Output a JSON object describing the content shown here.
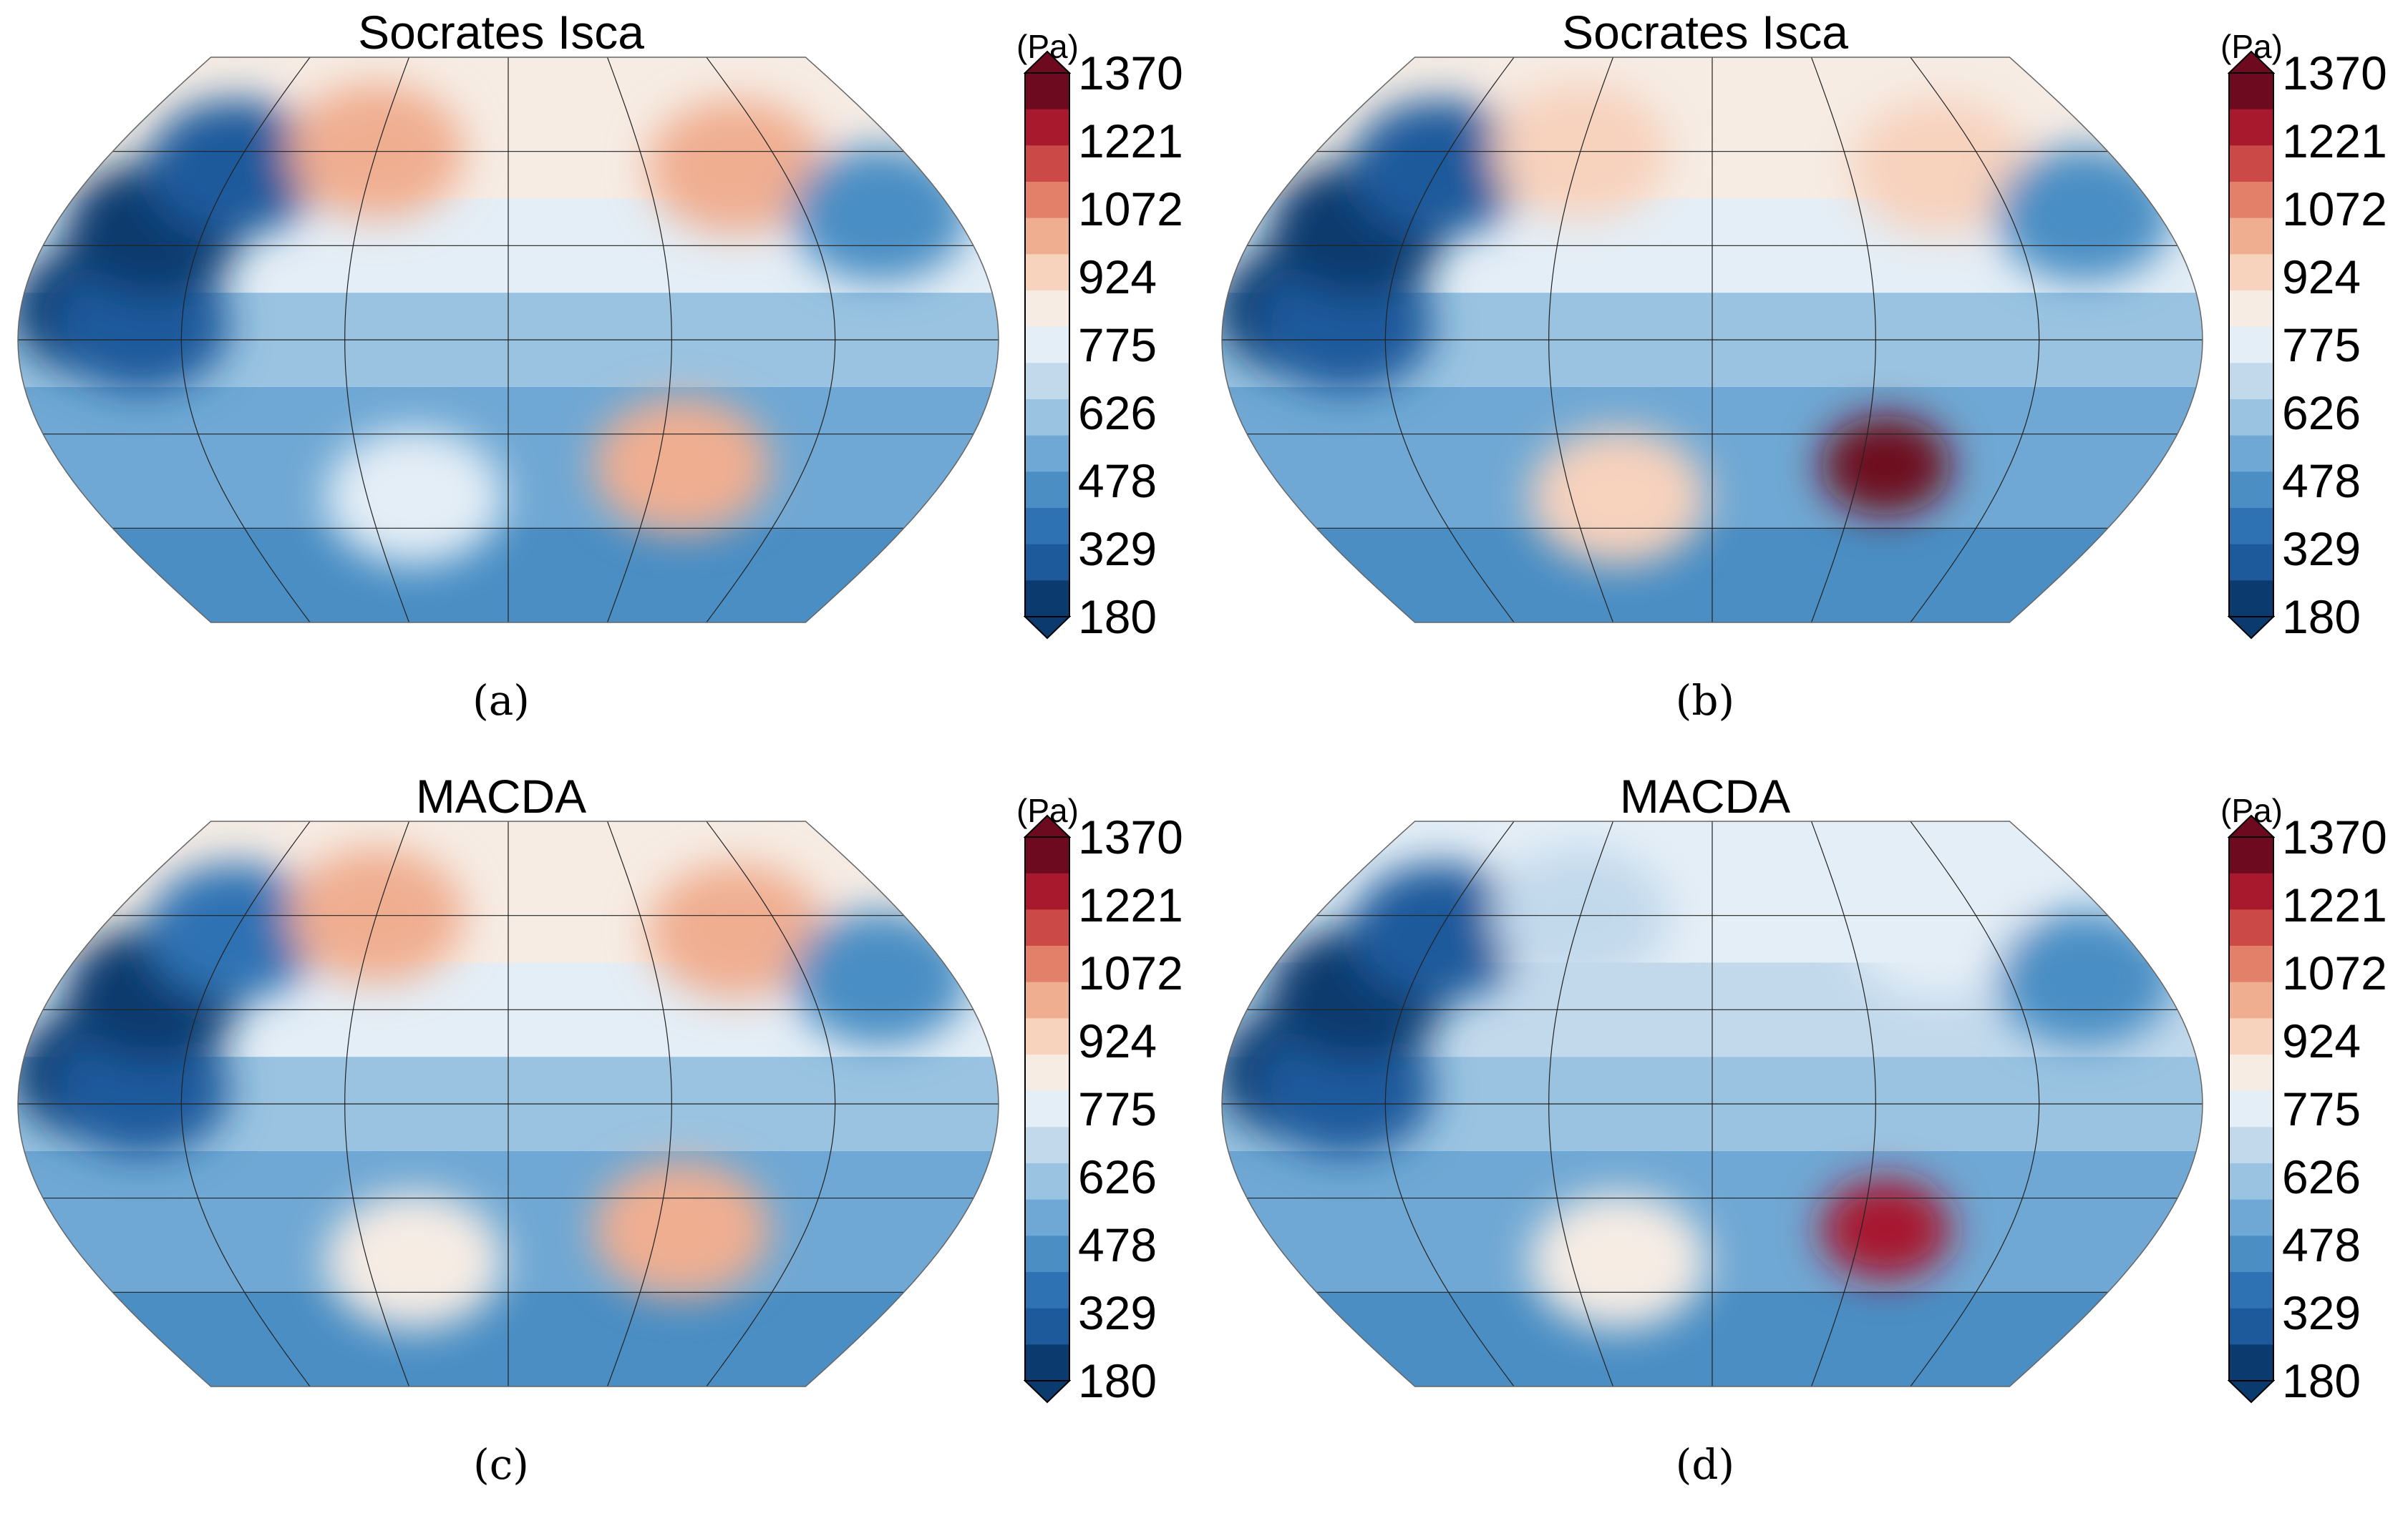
{
  "colors": {
    "scale": [
      "#0b3b6e",
      "#1d5a9c",
      "#2f72b4",
      "#4a8ec4",
      "#6fa8d4",
      "#9ac3e1",
      "#c2d9ec",
      "#e4eef6",
      "#f6ece4",
      "#f7d2bd",
      "#f0ae91",
      "#e2806a",
      "#cb4a48",
      "#a8192d",
      "#6e0a1f"
    ]
  },
  "chart_data": [
    {
      "type": "heatmap",
      "title": "Socrates Isca",
      "caption": "(a)",
      "colorbar": {
        "unit": "(Pa)",
        "ticks": [
          "1370",
          "1221",
          "1072",
          "924",
          "775",
          "626",
          "478",
          "329",
          "180"
        ],
        "range": [
          180,
          1370
        ]
      },
      "grid_lat": [
        -60,
        -30,
        0,
        30,
        60
      ],
      "grid_lon": [
        -120,
        -60,
        0,
        60,
        120
      ],
      "features": [
        {
          "lon": -150,
          "lat": 10,
          "value": 250
        },
        {
          "lon": -135,
          "lat": 5,
          "value": 300
        },
        {
          "lon": -140,
          "lat": 35,
          "value": 200
        },
        {
          "lon": -120,
          "lat": 55,
          "value": 330
        },
        {
          "lon": 70,
          "lat": -40,
          "value": 1050
        },
        {
          "lon": -60,
          "lat": 60,
          "value": 1000
        },
        {
          "lon": 100,
          "lat": 55,
          "value": 1050
        },
        {
          "lon": 150,
          "lat": 40,
          "value": 450
        },
        {
          "lon": -40,
          "lat": -50,
          "value": 800
        }
      ]
    },
    {
      "type": "heatmap",
      "title": "Socrates Isca",
      "caption": "(b)",
      "colorbar": {
        "unit": "(Pa)",
        "ticks": [
          "1370",
          "1221",
          "1072",
          "924",
          "775",
          "626",
          "478",
          "329",
          "180"
        ],
        "range": [
          180,
          1370
        ]
      },
      "grid_lat": [
        -60,
        -30,
        0,
        30,
        60
      ],
      "grid_lon": [
        -120,
        -60,
        0,
        60,
        120
      ],
      "features": [
        {
          "lon": -150,
          "lat": 10,
          "value": 250
        },
        {
          "lon": -135,
          "lat": 5,
          "value": 280
        },
        {
          "lon": -140,
          "lat": 35,
          "value": 200
        },
        {
          "lon": -120,
          "lat": 55,
          "value": 330
        },
        {
          "lon": 70,
          "lat": -40,
          "value": 1370
        },
        {
          "lon": -60,
          "lat": 60,
          "value": 930
        },
        {
          "lon": 100,
          "lat": 55,
          "value": 950
        },
        {
          "lon": 150,
          "lat": 40,
          "value": 450
        },
        {
          "lon": -40,
          "lat": -50,
          "value": 900
        }
      ]
    },
    {
      "type": "heatmap",
      "title": "MACDA",
      "caption": "(c)",
      "colorbar": {
        "unit": "(Pa)",
        "ticks": [
          "1370",
          "1221",
          "1072",
          "924",
          "775",
          "626",
          "478",
          "329",
          "180"
        ],
        "range": [
          180,
          1370
        ]
      },
      "grid_lat": [
        -60,
        -30,
        0,
        30,
        60
      ],
      "grid_lon": [
        -120,
        -60,
        0,
        60,
        120
      ],
      "features": [
        {
          "lon": -150,
          "lat": 10,
          "value": 250
        },
        {
          "lon": -135,
          "lat": 5,
          "value": 320
        },
        {
          "lon": -140,
          "lat": 35,
          "value": 220
        },
        {
          "lon": -120,
          "lat": 55,
          "value": 350
        },
        {
          "lon": 70,
          "lat": -40,
          "value": 980
        },
        {
          "lon": -60,
          "lat": 60,
          "value": 980
        },
        {
          "lon": 100,
          "lat": 55,
          "value": 1000
        },
        {
          "lon": 150,
          "lat": 40,
          "value": 470
        },
        {
          "lon": -40,
          "lat": -50,
          "value": 820
        }
      ]
    },
    {
      "type": "heatmap",
      "title": "MACDA",
      "caption": "(d)",
      "colorbar": {
        "unit": "(Pa)",
        "ticks": [
          "1370",
          "1221",
          "1072",
          "924",
          "775",
          "626",
          "478",
          "329",
          "180"
        ],
        "range": [
          180,
          1370
        ]
      },
      "grid_lat": [
        -60,
        -30,
        0,
        30,
        60
      ],
      "grid_lon": [
        -120,
        -60,
        0,
        60,
        120
      ],
      "features": [
        {
          "lon": -150,
          "lat": 10,
          "value": 250
        },
        {
          "lon": -135,
          "lat": 5,
          "value": 280
        },
        {
          "lon": -140,
          "lat": 35,
          "value": 220
        },
        {
          "lon": -120,
          "lat": 55,
          "value": 330
        },
        {
          "lon": 70,
          "lat": -40,
          "value": 1220
        },
        {
          "lon": -60,
          "lat": 60,
          "value": 720
        },
        {
          "lon": 100,
          "lat": 55,
          "value": 750
        },
        {
          "lon": 150,
          "lat": 40,
          "value": 420
        },
        {
          "lon": -40,
          "lat": -50,
          "value": 880
        }
      ]
    }
  ]
}
